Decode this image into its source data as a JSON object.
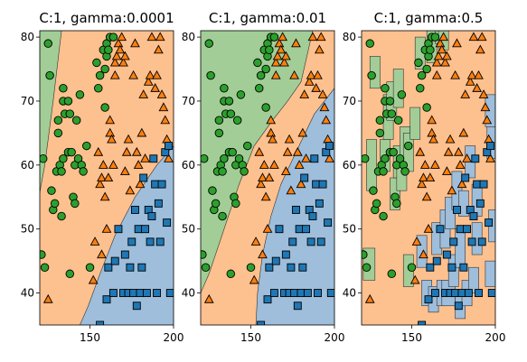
{
  "colors": {
    "class_circle": "#2ca02c",
    "class_triangle": "#ff7f0e",
    "class_square": "#1f77b4",
    "region_circle": "#a2cd97",
    "region_triangle": "#fdc08f",
    "region_square": "#9ebedb",
    "marker_edge": "#000000"
  },
  "chart_data": [
    {
      "type": "scatter",
      "title": "C:1, gamma:0.0001",
      "xlim": [
        120,
        200
      ],
      "ylim": [
        35,
        81
      ],
      "xticks": [
        "150",
        "200"
      ],
      "yticks": [
        "40",
        "50",
        "60",
        "70",
        "80"
      ],
      "boundaries": {
        "circle_triangle": [
          [
            133,
            81
          ],
          [
            128,
            70
          ],
          [
            123,
            60
          ],
          [
            116,
            50
          ],
          [
            111,
            42
          ],
          [
            107,
            35
          ]
        ],
        "triangle_square": [
          [
            200,
            63
          ],
          [
            190,
            60
          ],
          [
            177,
            55
          ],
          [
            165,
            49
          ],
          [
            156,
            43
          ],
          [
            149,
            38
          ],
          [
            144,
            35
          ]
        ]
      },
      "islands": []
    },
    {
      "type": "scatter",
      "title": "C:1, gamma:0.01",
      "xlim": [
        120,
        200
      ],
      "ylim": [
        35,
        81
      ],
      "xticks": [
        "150",
        "200"
      ],
      "yticks": [
        "40",
        "50",
        "60",
        "70",
        "80"
      ],
      "boundaries": {
        "circle_triangle": [
          [
            187,
            81
          ],
          [
            180,
            73
          ],
          [
            172,
            70
          ],
          [
            163,
            67
          ],
          [
            152,
            63
          ],
          [
            143,
            57
          ],
          [
            134,
            50
          ],
          [
            125,
            43
          ],
          [
            120,
            40
          ]
        ],
        "triangle_square": [
          [
            200,
            72
          ],
          [
            188,
            68
          ],
          [
            177,
            62
          ],
          [
            168,
            57
          ],
          [
            162,
            52
          ],
          [
            157,
            46
          ],
          [
            154,
            40
          ],
          [
            153,
            35
          ]
        ]
      },
      "islands": []
    },
    {
      "type": "scatter",
      "title": "C:1, gamma:0.5",
      "xlim": [
        120,
        200
      ],
      "ylim": [
        35,
        81
      ],
      "xticks": [
        "150",
        "200"
      ],
      "yticks": [
        "40",
        "50",
        "60",
        "70",
        "80"
      ],
      "boundaries": null,
      "islands": [
        {
          "cls": "circle",
          "x": [
            121,
            128
          ],
          "y": [
            42,
            47
          ]
        },
        {
          "cls": "circle",
          "x": [
            123,
            129
          ],
          "y": [
            56,
            64
          ]
        },
        {
          "cls": "circle",
          "x": [
            125,
            131
          ],
          "y": [
            72,
            77
          ]
        },
        {
          "cls": "circle",
          "x": [
            131,
            137
          ],
          "y": [
            59,
            64
          ]
        },
        {
          "cls": "circle",
          "x": [
            133,
            139
          ],
          "y": [
            64,
            71
          ]
        },
        {
          "cls": "circle",
          "x": [
            135,
            141
          ],
          "y": [
            67,
            73
          ]
        },
        {
          "cls": "circle",
          "x": [
            137,
            143
          ],
          "y": [
            53,
            58
          ]
        },
        {
          "cls": "circle",
          "x": [
            139,
            145
          ],
          "y": [
            58,
            63
          ]
        },
        {
          "cls": "circle",
          "x": [
            139,
            145
          ],
          "y": [
            69,
            75
          ]
        },
        {
          "cls": "circle",
          "x": [
            141,
            147
          ],
          "y": [
            56,
            61
          ]
        },
        {
          "cls": "circle",
          "x": [
            143,
            149
          ],
          "y": [
            61,
            66
          ]
        },
        {
          "cls": "circle",
          "x": [
            145,
            151
          ],
          "y": [
            59,
            65
          ]
        },
        {
          "cls": "circle",
          "x": [
            145,
            151
          ],
          "y": [
            41,
            46
          ]
        },
        {
          "cls": "circle",
          "x": [
            149,
            155
          ],
          "y": [
            64,
            69
          ]
        },
        {
          "cls": "circle",
          "x": [
            152,
            158
          ],
          "y": [
            75,
            80
          ]
        },
        {
          "cls": "circle",
          "x": [
            159,
            165
          ],
          "y": [
            76,
            81
          ]
        },
        {
          "cls": "circle",
          "x": [
            164,
            170
          ],
          "y": [
            79,
            81
          ]
        },
        {
          "cls": "circle",
          "x": [
            166,
            172
          ],
          "y": [
            78,
            81
          ]
        },
        {
          "cls": "square",
          "x": [
            153,
            159
          ],
          "y": [
            44,
            49
          ]
        },
        {
          "cls": "square",
          "x": [
            156,
            162
          ],
          "y": [
            38,
            42
          ]
        },
        {
          "cls": "square",
          "x": [
            160,
            166
          ],
          "y": [
            37,
            41
          ]
        },
        {
          "cls": "square",
          "x": [
            162,
            168
          ],
          "y": [
            46,
            51
          ]
        },
        {
          "cls": "square",
          "x": [
            165,
            171
          ],
          "y": [
            38,
            42
          ]
        },
        {
          "cls": "square",
          "x": [
            167,
            173
          ],
          "y": [
            47,
            53
          ]
        },
        {
          "cls": "square",
          "x": [
            168,
            176
          ],
          "y": [
            38,
            42
          ]
        },
        {
          "cls": "square",
          "x": [
            170,
            176
          ],
          "y": [
            50,
            55
          ]
        },
        {
          "cls": "square",
          "x": [
            172,
            178
          ],
          "y": [
            41,
            46
          ]
        },
        {
          "cls": "square",
          "x": [
            174,
            180
          ],
          "y": [
            53,
            59
          ]
        },
        {
          "cls": "square",
          "x": [
            176,
            182
          ],
          "y": [
            36,
            40
          ]
        },
        {
          "cls": "square",
          "x": [
            176,
            182
          ],
          "y": [
            44,
            50
          ]
        },
        {
          "cls": "square",
          "x": [
            178,
            184
          ],
          "y": [
            52,
            56
          ]
        },
        {
          "cls": "square",
          "x": [
            180,
            186
          ],
          "y": [
            38,
            42
          ]
        },
        {
          "cls": "square",
          "x": [
            182,
            188
          ],
          "y": [
            58,
            63
          ]
        },
        {
          "cls": "square",
          "x": [
            184,
            190
          ],
          "y": [
            40,
            44
          ]
        },
        {
          "cls": "square",
          "x": [
            186,
            192
          ],
          "y": [
            46,
            51
          ]
        },
        {
          "cls": "square",
          "x": [
            186,
            192
          ],
          "y": [
            52,
            57
          ]
        },
        {
          "cls": "square",
          "x": [
            194,
            200
          ],
          "y": [
            66,
            71
          ]
        },
        {
          "cls": "square",
          "x": [
            195,
            200
          ],
          "y": [
            61,
            66
          ]
        },
        {
          "cls": "square",
          "x": [
            196,
            200
          ],
          "y": [
            48,
            53
          ]
        },
        {
          "cls": "square",
          "x": [
            194,
            200
          ],
          "y": [
            41,
            45
          ]
        }
      ]
    }
  ],
  "points": {
    "circle": [
      [
        121,
        46
      ],
      [
        122,
        61
      ],
      [
        123,
        44
      ],
      [
        125,
        79
      ],
      [
        126,
        74
      ],
      [
        127,
        56
      ],
      [
        128,
        53
      ],
      [
        129,
        54
      ],
      [
        130,
        59
      ],
      [
        131,
        65
      ],
      [
        131,
        67
      ],
      [
        132,
        60
      ],
      [
        133,
        52
      ],
      [
        133,
        59
      ],
      [
        134,
        72
      ],
      [
        134,
        61
      ],
      [
        134,
        70
      ],
      [
        135,
        68
      ],
      [
        137,
        62
      ],
      [
        137,
        70
      ],
      [
        138,
        43
      ],
      [
        138,
        68
      ],
      [
        139,
        62
      ],
      [
        140,
        55
      ],
      [
        141,
        54
      ],
      [
        141,
        60
      ],
      [
        142,
        67
      ],
      [
        143,
        61
      ],
      [
        144,
        71
      ],
      [
        145,
        60
      ],
      [
        146,
        59
      ],
      [
        148,
        63
      ],
      [
        150,
        44
      ],
      [
        154,
        76
      ],
      [
        155,
        72
      ],
      [
        156,
        74
      ],
      [
        158,
        78
      ],
      [
        159,
        75
      ],
      [
        159,
        69
      ],
      [
        160,
        77
      ],
      [
        160,
        79
      ],
      [
        161,
        78
      ],
      [
        162,
        80
      ],
      [
        164,
        80
      ]
    ],
    "triangle": [
      [
        125,
        39
      ],
      [
        152,
        42
      ],
      [
        153,
        48
      ],
      [
        155,
        62
      ],
      [
        156,
        57
      ],
      [
        157,
        46
      ],
      [
        157,
        58
      ],
      [
        158,
        60
      ],
      [
        159,
        55
      ],
      [
        160,
        50
      ],
      [
        161,
        58
      ],
      [
        162,
        67
      ],
      [
        162,
        65
      ],
      [
        163,
        64
      ],
      [
        164,
        60
      ],
      [
        165,
        74
      ],
      [
        165,
        76
      ],
      [
        166,
        77
      ],
      [
        167,
        79
      ],
      [
        168,
        78
      ],
      [
        169,
        80
      ],
      [
        170,
        76
      ],
      [
        171,
        77
      ],
      [
        171,
        59
      ],
      [
        172,
        62
      ],
      [
        173,
        64
      ],
      [
        174,
        56
      ],
      [
        176,
        74
      ],
      [
        177,
        79
      ],
      [
        178,
        62
      ],
      [
        179,
        60
      ],
      [
        180,
        57
      ],
      [
        181,
        65
      ],
      [
        182,
        71
      ],
      [
        183,
        61
      ],
      [
        185,
        73
      ],
      [
        186,
        74
      ],
      [
        187,
        80
      ],
      [
        189,
        72
      ],
      [
        190,
        74
      ],
      [
        191,
        78
      ],
      [
        192,
        80
      ],
      [
        193,
        71
      ],
      [
        194,
        69
      ],
      [
        195,
        67
      ],
      [
        196,
        64
      ],
      [
        197,
        61
      ]
    ],
    "square": [
      [
        156,
        35
      ],
      [
        160,
        39
      ],
      [
        161,
        44
      ],
      [
        164,
        40
      ],
      [
        165,
        45
      ],
      [
        167,
        50
      ],
      [
        170,
        40
      ],
      [
        171,
        46
      ],
      [
        173,
        40
      ],
      [
        174,
        44
      ],
      [
        175,
        48
      ],
      [
        176,
        40
      ],
      [
        177,
        53
      ],
      [
        178,
        38
      ],
      [
        179,
        50
      ],
      [
        180,
        40
      ],
      [
        181,
        44
      ],
      [
        182,
        58
      ],
      [
        183,
        50
      ],
      [
        184,
        40
      ],
      [
        185,
        53
      ],
      [
        186,
        48
      ],
      [
        187,
        52
      ],
      [
        188,
        61
      ],
      [
        189,
        57
      ],
      [
        190,
        40
      ],
      [
        191,
        54
      ],
      [
        192,
        48
      ],
      [
        193,
        57
      ],
      [
        195,
        62
      ],
      [
        196,
        51
      ],
      [
        197,
        63
      ],
      [
        198,
        40
      ]
    ]
  }
}
